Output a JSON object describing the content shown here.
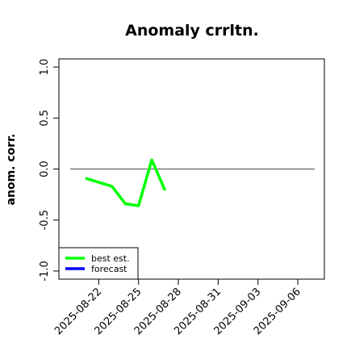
{
  "chart_data": {
    "type": "line",
    "title": "Anomaly crrltn.",
    "y_label": "anom. corr.",
    "x": [
      "2025-08-21",
      "2025-08-23",
      "2025-08-24",
      "2025-08-25",
      "2025-08-26",
      "2025-08-27"
    ],
    "series": [
      {
        "name": "best est.",
        "color": "#00ff00",
        "values": [
          -0.09,
          -0.17,
          -0.34,
          -0.36,
          0.09,
          -0.21
        ]
      },
      {
        "name": "forecast",
        "color": "#0000ff",
        "values": [
          null,
          null,
          null,
          null,
          null,
          null
        ]
      }
    ],
    "xlim": [
      "2025-08-19",
      "2025-09-08"
    ],
    "xticks": [
      "2025-08-22",
      "2025-08-25",
      "2025-08-28",
      "2025-08-31",
      "2025-09-03",
      "2025-09-06"
    ],
    "highlighted_xtick_index": 2,
    "highlight_color": "#228b22",
    "ylim": [
      -1.08,
      1.08
    ],
    "yticks": [
      {
        "value": -1,
        "label": "-1.0"
      },
      {
        "value": -0.5,
        "label": "-0.5"
      },
      {
        "value": 0,
        "label": "0.0"
      },
      {
        "value": 0.5,
        "label": "0.5"
      },
      {
        "value": 1,
        "label": "1.0"
      }
    ],
    "reference_line": 0,
    "reference_color": "#666666",
    "legend": "bottom-left"
  }
}
